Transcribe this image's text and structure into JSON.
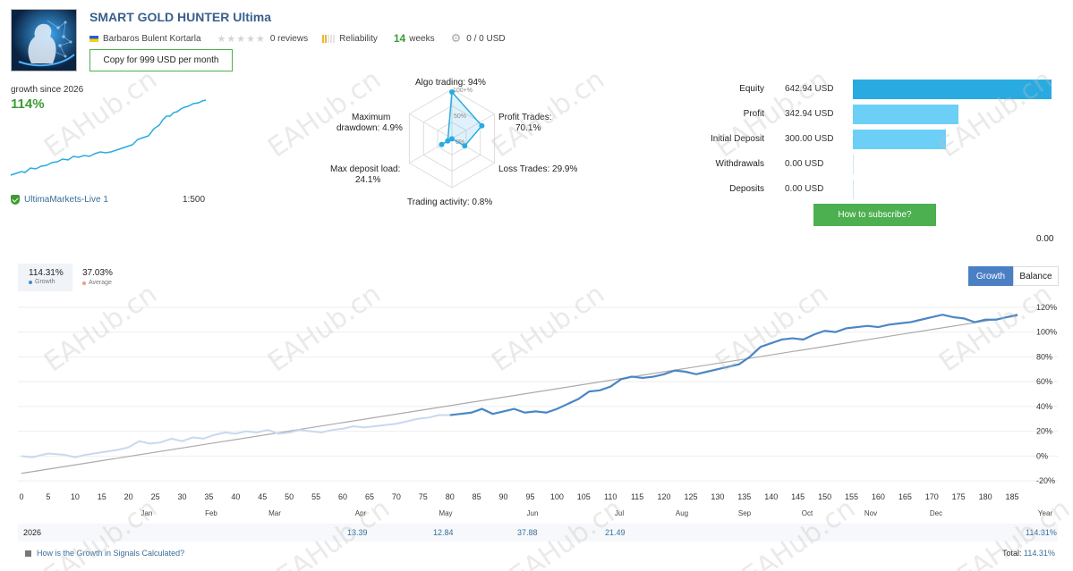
{
  "header": {
    "title": "SMART GOLD HUNTER Ultima",
    "author": "Barbaros Bulent Kortarla",
    "reviews": "0 reviews",
    "reliability": "Reliability",
    "weeks_value": "14",
    "weeks_label": "weeks",
    "subscribers": "0 / 0 USD",
    "copy_button": "Copy for 999 USD per month"
  },
  "summary": {
    "growth_label": "growth since 2026",
    "growth_value": "114%",
    "account": "UltimaMarkets-Live 1",
    "leverage": "1:500"
  },
  "radar": {
    "algo": "Algo trading: 94%",
    "profit_l1": "Profit Trades:",
    "profit_l2": "70.1%",
    "loss": "Loss Trades: 29.9%",
    "activity": "Trading activity: 0.8%",
    "deposit_l1": "Max deposit load:",
    "deposit_l2": "24.1%",
    "drawdown_l1": "Maximum",
    "drawdown_l2": "drawdown: 4.9%",
    "scale_100": "100+%",
    "scale_50": "50%",
    "scale_0": "0%"
  },
  "balance_bars": {
    "items": [
      {
        "label": "Equity",
        "value": "642.94 USD",
        "amount": 642.94,
        "color": "#29abe2"
      },
      {
        "label": "Profit",
        "value": "342.94 USD",
        "amount": 342.94,
        "color": "#6ccff6"
      },
      {
        "label": "Initial Deposit",
        "value": "300.00 USD",
        "amount": 300.0,
        "color": "#6ccff6"
      },
      {
        "label": "Withdrawals",
        "value": "0.00 USD",
        "amount": 0,
        "color": "#6ccff6"
      },
      {
        "label": "Deposits",
        "value": "0.00 USD",
        "amount": 0,
        "color": "#6ccff6"
      }
    ],
    "subscribe_button": "How to subscribe?",
    "extra_value": "0.00"
  },
  "legend": {
    "growth_value": "114.31%",
    "growth_label": "Growth",
    "average_value": "37.03%",
    "average_label": "Average"
  },
  "tabs": {
    "growth": "Growth",
    "balance": "Balance"
  },
  "chart_data": {
    "type": "line",
    "x_ticks": [
      0,
      5,
      10,
      15,
      20,
      25,
      30,
      35,
      40,
      45,
      50,
      55,
      60,
      65,
      70,
      75,
      80,
      85,
      90,
      95,
      100,
      105,
      110,
      115,
      120,
      125,
      130,
      135,
      140,
      145,
      150,
      155,
      160,
      165,
      170,
      175,
      180,
      185
    ],
    "x_range": [
      0,
      186
    ],
    "y_ticks": [
      "120%",
      "100%",
      "80%",
      "60%",
      "40%",
      "20%",
      "0%",
      "-20%"
    ],
    "y_tick_values": [
      120,
      100,
      80,
      60,
      40,
      20,
      0,
      -20
    ],
    "y_range": [
      -25,
      130
    ],
    "months": [
      "Jan",
      "Feb",
      "Mar",
      "Apr",
      "May",
      "Jun",
      "Jul",
      "Aug",
      "Sep",
      "Oct",
      "Nov",
      "Dec",
      "Year"
    ],
    "series": [
      {
        "name": "Growth",
        "color": "#4a86c5",
        "points": [
          [
            0,
            0
          ],
          [
            2,
            -1
          ],
          [
            5,
            2
          ],
          [
            8,
            1
          ],
          [
            10,
            -1
          ],
          [
            12,
            1
          ],
          [
            15,
            3
          ],
          [
            18,
            5
          ],
          [
            20,
            7
          ],
          [
            22,
            12
          ],
          [
            24,
            10
          ],
          [
            26,
            11
          ],
          [
            28,
            14
          ],
          [
            30,
            12
          ],
          [
            32,
            15
          ],
          [
            34,
            14
          ],
          [
            36,
            17
          ],
          [
            38,
            19
          ],
          [
            40,
            18
          ],
          [
            42,
            20
          ],
          [
            44,
            19
          ],
          [
            46,
            21
          ],
          [
            48,
            18
          ],
          [
            50,
            19
          ],
          [
            52,
            21
          ],
          [
            54,
            20
          ],
          [
            56,
            19
          ],
          [
            58,
            21
          ],
          [
            60,
            22
          ],
          [
            62,
            24
          ],
          [
            64,
            23
          ],
          [
            66,
            24
          ],
          [
            68,
            25
          ],
          [
            70,
            26
          ],
          [
            72,
            28
          ],
          [
            74,
            30
          ],
          [
            76,
            31
          ],
          [
            78,
            33
          ],
          [
            80,
            33
          ],
          [
            82,
            34
          ],
          [
            84,
            35
          ],
          [
            86,
            38
          ],
          [
            88,
            34
          ],
          [
            90,
            36
          ],
          [
            92,
            38
          ],
          [
            94,
            35
          ],
          [
            96,
            36
          ],
          [
            98,
            35
          ],
          [
            100,
            38
          ],
          [
            102,
            42
          ],
          [
            104,
            46
          ],
          [
            106,
            52
          ],
          [
            108,
            53
          ],
          [
            110,
            56
          ],
          [
            112,
            62
          ],
          [
            114,
            64
          ],
          [
            116,
            63
          ],
          [
            118,
            64
          ],
          [
            120,
            66
          ],
          [
            122,
            69
          ],
          [
            124,
            68
          ],
          [
            126,
            66
          ],
          [
            128,
            68
          ],
          [
            130,
            70
          ],
          [
            132,
            72
          ],
          [
            134,
            74
          ],
          [
            136,
            80
          ],
          [
            138,
            88
          ],
          [
            140,
            91
          ],
          [
            142,
            94
          ],
          [
            144,
            95
          ],
          [
            146,
            94
          ],
          [
            148,
            98
          ],
          [
            150,
            101
          ],
          [
            152,
            100
          ],
          [
            154,
            103
          ],
          [
            156,
            104
          ],
          [
            158,
            105
          ],
          [
            160,
            104
          ],
          [
            162,
            106
          ],
          [
            164,
            107
          ],
          [
            166,
            108
          ],
          [
            168,
            110
          ],
          [
            170,
            112
          ],
          [
            172,
            114
          ],
          [
            174,
            112
          ],
          [
            176,
            111
          ],
          [
            178,
            108
          ],
          [
            180,
            110
          ],
          [
            182,
            110
          ],
          [
            184,
            112
          ],
          [
            186,
            114
          ]
        ]
      },
      {
        "name": "Average",
        "color": "#aaaaaa",
        "points": [
          [
            0,
            -14
          ],
          [
            186,
            113
          ]
        ]
      }
    ]
  },
  "year_row": {
    "year": "2026",
    "apr": "13.39",
    "may": "12.84",
    "jun": "37.88",
    "jul": "21.49",
    "total": "114.31%"
  },
  "footer": {
    "link": "How is the Growth in Signals Calculated?",
    "total_label": "Total:",
    "total_value": "114.31%"
  },
  "watermark": "EAHub.cn"
}
